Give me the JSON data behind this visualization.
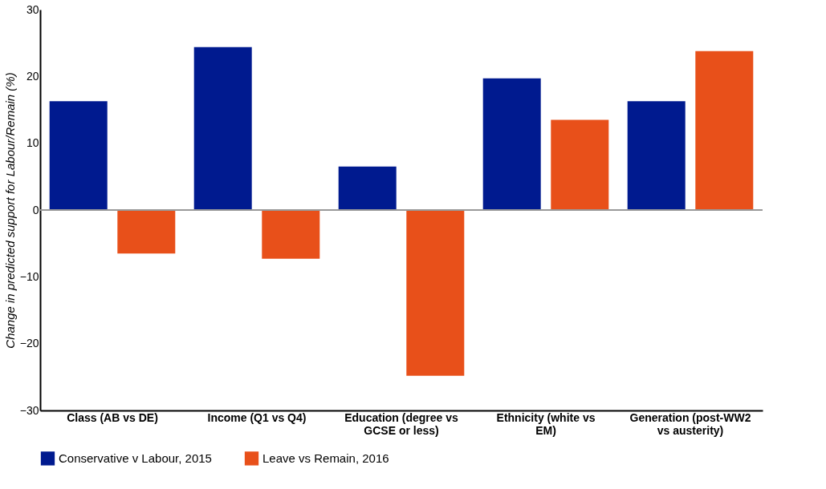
{
  "chart_data": {
    "type": "bar",
    "ylabel": "Change in predicted support for Labour/Remain (%)",
    "categories": [
      "Class (AB vs DE)",
      "Income (Q1 vs Q4)",
      "Education (degree vs\nGCSE or less)",
      "Ethnicity (white vs\nEM)",
      "Generation (post-WW2\nvs austerity)"
    ],
    "series": [
      {
        "name": "Conservative v Labour, 2015",
        "color": "#001a8f",
        "values": [
          16.3,
          24.4,
          6.5,
          19.7,
          16.3
        ]
      },
      {
        "name": "Leave vs Remain, 2016",
        "color": "#e8501a",
        "values": [
          -6.5,
          -7.3,
          -24.8,
          13.5,
          23.8
        ]
      }
    ],
    "ylim": [
      -30,
      30
    ],
    "yticks": [
      -30,
      -20,
      -10,
      0,
      10,
      20,
      30
    ],
    "grid": false,
    "legend": "bottom",
    "ref_lines": [
      {
        "axis": "y",
        "value": 0,
        "color": "#999999"
      }
    ]
  }
}
